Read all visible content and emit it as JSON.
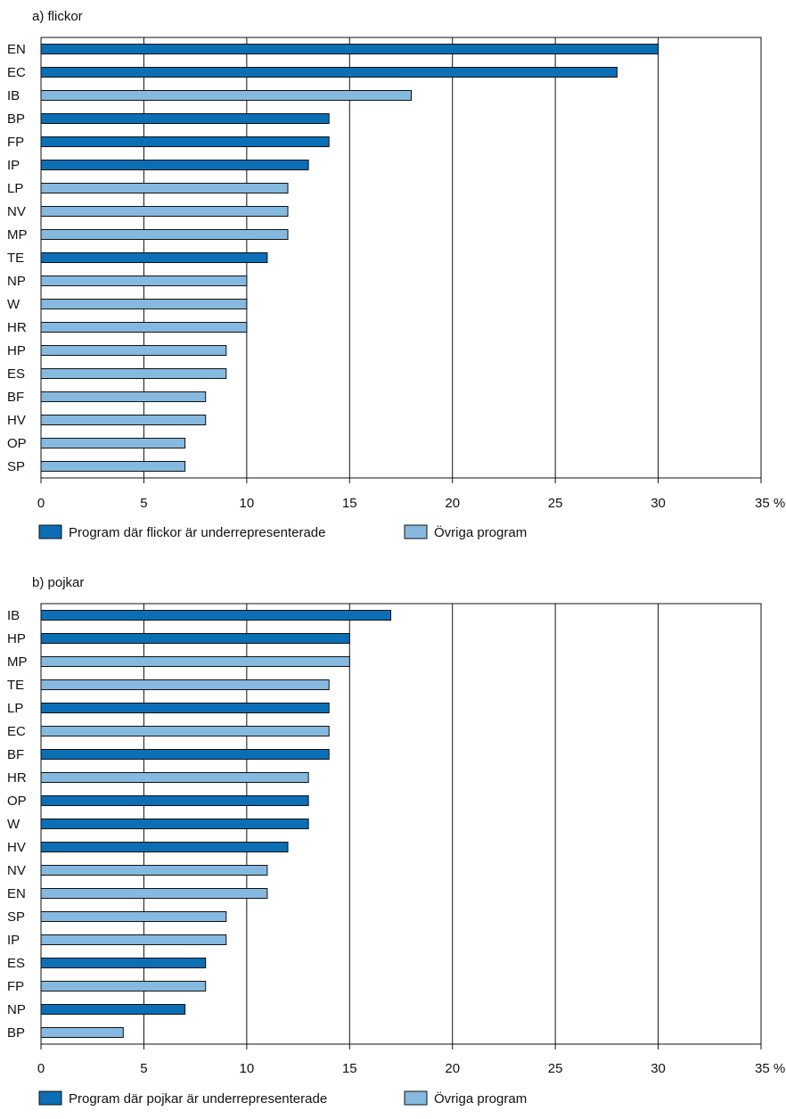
{
  "colors": {
    "underrepresented": "#0c6eb5",
    "other": "#86b9df",
    "frame": "#111111"
  },
  "chart_data": [
    {
      "type": "bar",
      "orientation": "horizontal",
      "title": "a) flickor",
      "categories": [
        "EN",
        "EC",
        "IB",
        "BP",
        "FP",
        "IP",
        "LP",
        "NV",
        "MP",
        "TE",
        "NP",
        "W",
        "HR",
        "HP",
        "ES",
        "BF",
        "HV",
        "OP",
        "SP"
      ],
      "values": [
        30,
        28,
        18,
        14,
        14,
        13,
        12,
        12,
        12,
        11,
        10,
        10,
        10,
        9,
        9,
        8,
        8,
        7,
        7
      ],
      "groups": [
        "u",
        "u",
        "o",
        "u",
        "u",
        "u",
        "o",
        "o",
        "o",
        "u",
        "o",
        "o",
        "o",
        "o",
        "o",
        "o",
        "o",
        "o",
        "o"
      ],
      "xlim": [
        0,
        35
      ],
      "xticks": [
        "0",
        "5",
        "10",
        "15",
        "20",
        "25",
        "30",
        "35 %"
      ],
      "grid": "vertical",
      "legend": [
        "Program där flickor är underrepresenterade",
        "Övriga program"
      ],
      "legend_placement": "bottom"
    },
    {
      "type": "bar",
      "orientation": "horizontal",
      "title": "b) pojkar",
      "categories": [
        "IB",
        "HP",
        "MP",
        "TE",
        "LP",
        "EC",
        "BF",
        "HR",
        "OP",
        "W",
        "HV",
        "NV",
        "EN",
        "SP",
        "IP",
        "ES",
        "FP",
        "NP",
        "BP"
      ],
      "values": [
        17,
        15,
        15,
        14,
        14,
        14,
        14,
        13,
        13,
        13,
        12,
        11,
        11,
        9,
        9,
        8,
        8,
        7,
        4
      ],
      "groups": [
        "u",
        "u",
        "o",
        "o",
        "u",
        "o",
        "u",
        "o",
        "u",
        "u",
        "u",
        "o",
        "o",
        "o",
        "o",
        "u",
        "o",
        "u",
        "o"
      ],
      "xlim": [
        0,
        35
      ],
      "xticks": [
        "0",
        "5",
        "10",
        "15",
        "20",
        "25",
        "30",
        "35 %"
      ],
      "grid": "vertical",
      "legend": [
        "Program där pojkar är underrepresenterade",
        "Övriga program"
      ],
      "legend_placement": "bottom"
    }
  ]
}
